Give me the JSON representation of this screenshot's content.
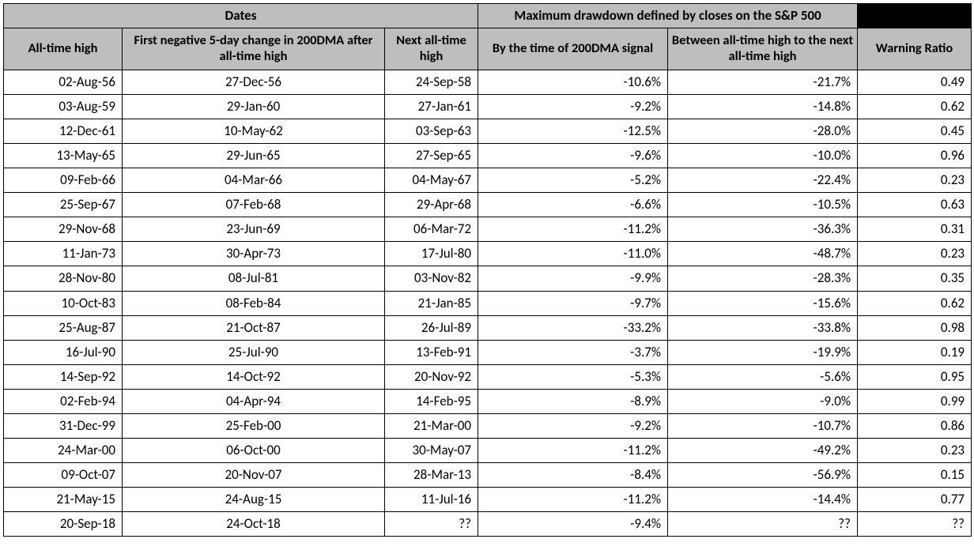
{
  "table": {
    "header_background": "#bebebe",
    "border_color": "#000000",
    "font_family": "Calibri",
    "header_fontsize": 17,
    "cell_fontsize": 17,
    "header_group1": "Dates",
    "header_group2": "Maximum drawdown defined by closes on the S&P 500",
    "sub_headers": [
      "All-time high",
      "First negative 5-day change in 200DMA after all-time high",
      "Next all-time high",
      "By the time of 200DMA signal",
      "Between all-time high to the next all-time high",
      "Warning Ratio"
    ],
    "rows": [
      {
        "d1": "02-Aug-56",
        "d2": "27-Dec-56",
        "d3": "24-Sep-58",
        "v1": "-10.6%",
        "v2": "-21.7%",
        "r": "0.49"
      },
      {
        "d1": "03-Aug-59",
        "d2": "29-Jan-60",
        "d3": "27-Jan-61",
        "v1": "-9.2%",
        "v2": "-14.8%",
        "r": "0.62"
      },
      {
        "d1": "12-Dec-61",
        "d2": "10-May-62",
        "d3": "03-Sep-63",
        "v1": "-12.5%",
        "v2": "-28.0%",
        "r": "0.45"
      },
      {
        "d1": "13-May-65",
        "d2": "29-Jun-65",
        "d3": "27-Sep-65",
        "v1": "-9.6%",
        "v2": "-10.0%",
        "r": "0.96"
      },
      {
        "d1": "09-Feb-66",
        "d2": "04-Mar-66",
        "d3": "04-May-67",
        "v1": "-5.2%",
        "v2": "-22.4%",
        "r": "0.23"
      },
      {
        "d1": "25-Sep-67",
        "d2": "07-Feb-68",
        "d3": "29-Apr-68",
        "v1": "-6.6%",
        "v2": "-10.5%",
        "r": "0.63"
      },
      {
        "d1": "29-Nov-68",
        "d2": "23-Jun-69",
        "d3": "06-Mar-72",
        "v1": "-11.2%",
        "v2": "-36.3%",
        "r": "0.31"
      },
      {
        "d1": "11-Jan-73",
        "d2": "30-Apr-73",
        "d3": "17-Jul-80",
        "v1": "-11.0%",
        "v2": "-48.7%",
        "r": "0.23"
      },
      {
        "d1": "28-Nov-80",
        "d2": "08-Jul-81",
        "d3": "03-Nov-82",
        "v1": "-9.9%",
        "v2": "-28.3%",
        "r": "0.35"
      },
      {
        "d1": "10-Oct-83",
        "d2": "08-Feb-84",
        "d3": "21-Jan-85",
        "v1": "-9.7%",
        "v2": "-15.6%",
        "r": "0.62"
      },
      {
        "d1": "25-Aug-87",
        "d2": "21-Oct-87",
        "d3": "26-Jul-89",
        "v1": "-33.2%",
        "v2": "-33.8%",
        "r": "0.98"
      },
      {
        "d1": "16-Jul-90",
        "d2": "25-Jul-90",
        "d3": "13-Feb-91",
        "v1": "-3.7%",
        "v2": "-19.9%",
        "r": "0.19"
      },
      {
        "d1": "14-Sep-92",
        "d2": "14-Oct-92",
        "d3": "20-Nov-92",
        "v1": "-5.3%",
        "v2": "-5.6%",
        "r": "0.95"
      },
      {
        "d1": "02-Feb-94",
        "d2": "04-Apr-94",
        "d3": "14-Feb-95",
        "v1": "-8.9%",
        "v2": "-9.0%",
        "r": "0.99"
      },
      {
        "d1": "31-Dec-99",
        "d2": "25-Feb-00",
        "d3": "21-Mar-00",
        "v1": "-9.2%",
        "v2": "-10.7%",
        "r": "0.86"
      },
      {
        "d1": "24-Mar-00",
        "d2": "06-Oct-00",
        "d3": "30-May-07",
        "v1": "-11.2%",
        "v2": "-49.2%",
        "r": "0.23"
      },
      {
        "d1": "09-Oct-07",
        "d2": "20-Nov-07",
        "d3": "28-Mar-13",
        "v1": "-8.4%",
        "v2": "-56.9%",
        "r": "0.15"
      },
      {
        "d1": "21-May-15",
        "d2": "24-Aug-15",
        "d3": "11-Jul-16",
        "v1": "-11.2%",
        "v2": "-14.4%",
        "r": "0.77"
      },
      {
        "d1": "20-Sep-18",
        "d2": "24-Oct-18",
        "d3": "??",
        "v1": "-9.4%",
        "v2": "??",
        "r": "??"
      }
    ]
  }
}
